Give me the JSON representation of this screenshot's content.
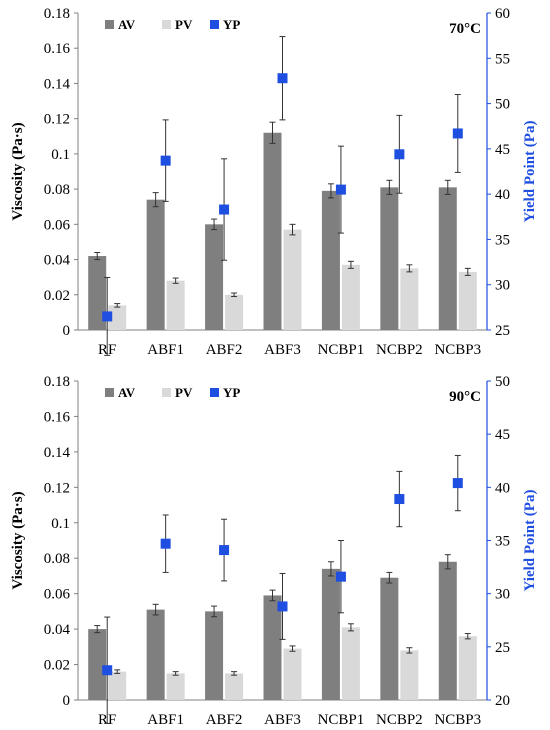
{
  "chart_data": [
    {
      "type": "bar",
      "annotation": "70°C",
      "categories": [
        "RF",
        "ABF1",
        "ABF2",
        "ABF3",
        "NCBP1",
        "NCBP2",
        "NCBP3"
      ],
      "ylabel": "Viscosity (Pa·s)",
      "y2label": "Yield Point (Pa)",
      "ylim": [
        0,
        0.18
      ],
      "y2lim": [
        25,
        60
      ],
      "yticks": [
        "0",
        "0.02",
        "0.04",
        "0.06",
        "0.08",
        "0.1",
        "0.12",
        "0.14",
        "0.16",
        "0.18"
      ],
      "y2ticks": [
        "25",
        "30",
        "35",
        "40",
        "45",
        "50",
        "55",
        "60"
      ],
      "legend": [
        "AV",
        "PV",
        "YP"
      ],
      "legend_position": "top-left",
      "series": [
        {
          "name": "AV",
          "axis": "left",
          "kind": "bar",
          "color": "#7f7f7f",
          "values": [
            0.042,
            0.074,
            0.06,
            0.112,
            0.079,
            0.081,
            0.081
          ],
          "errors": [
            0.002,
            0.004,
            0.003,
            0.006,
            0.004,
            0.004,
            0.004
          ]
        },
        {
          "name": "PV",
          "axis": "left",
          "kind": "bar",
          "color": "#d9d9d9",
          "values": [
            0.014,
            0.028,
            0.02,
            0.057,
            0.037,
            0.035,
            0.033
          ],
          "errors": [
            0.001,
            0.0015,
            0.001,
            0.003,
            0.002,
            0.002,
            0.002
          ]
        },
        {
          "name": "YP",
          "axis": "right",
          "kind": "marker",
          "color": "#1f4fe0",
          "values": [
            26.5,
            43.7,
            38.3,
            52.8,
            40.5,
            44.4,
            46.7
          ],
          "errors": [
            4.3,
            4.5,
            5.6,
            4.6,
            4.8,
            4.3,
            4.3
          ]
        }
      ]
    },
    {
      "type": "bar",
      "annotation": "90°C",
      "categories": [
        "RF",
        "ABF1",
        "ABF2",
        "ABF3",
        "NCBP1",
        "NCBP2",
        "NCBP3"
      ],
      "ylabel": "Viscosity (Pa·s)",
      "y2label": "Yield Point (Pa)",
      "ylim": [
        0,
        0.18
      ],
      "y2lim": [
        20,
        50
      ],
      "yticks": [
        "0",
        "0.02",
        "0.04",
        "0.06",
        "0.08",
        "0.1",
        "0.12",
        "0.14",
        "0.16",
        "0.18"
      ],
      "y2ticks": [
        "20",
        "25",
        "30",
        "35",
        "40",
        "45",
        "50"
      ],
      "legend": [
        "AV",
        "PV",
        "YP"
      ],
      "legend_position": "top-left",
      "series": [
        {
          "name": "AV",
          "axis": "left",
          "kind": "bar",
          "color": "#7f7f7f",
          "values": [
            0.04,
            0.051,
            0.05,
            0.059,
            0.074,
            0.069,
            0.078
          ],
          "errors": [
            0.002,
            0.003,
            0.003,
            0.003,
            0.004,
            0.003,
            0.004
          ]
        },
        {
          "name": "PV",
          "axis": "left",
          "kind": "bar",
          "color": "#d9d9d9",
          "values": [
            0.016,
            0.015,
            0.015,
            0.029,
            0.041,
            0.028,
            0.036
          ],
          "errors": [
            0.001,
            0.001,
            0.001,
            0.0015,
            0.002,
            0.0015,
            0.0015
          ]
        },
        {
          "name": "YP",
          "axis": "right",
          "kind": "marker",
          "color": "#1f4fe0",
          "values": [
            22.8,
            34.7,
            34.1,
            28.8,
            31.6,
            38.9,
            40.4
          ],
          "errors": [
            5.0,
            2.7,
            2.9,
            3.1,
            3.4,
            2.6,
            2.6
          ]
        }
      ]
    }
  ]
}
